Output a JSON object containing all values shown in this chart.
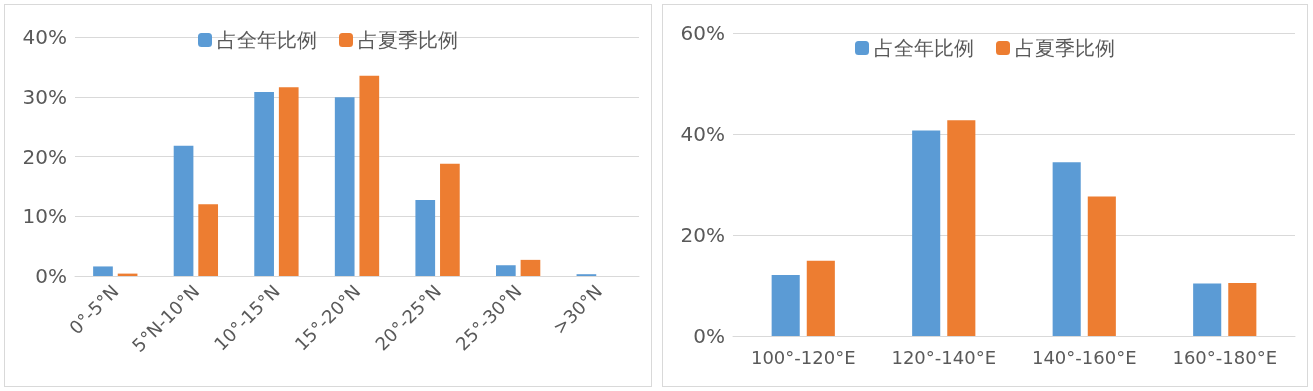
{
  "chart_data": [
    {
      "type": "bar",
      "categories": [
        "0°-5°N",
        "5°N-10°N",
        "10°-15°N",
        "15°-20°N",
        "20°-25°N",
        "25°-30°N",
        ">30°N"
      ],
      "series": [
        {
          "name": "占全年比例",
          "color": "#5b9bd5",
          "values": [
            1.6,
            21.8,
            30.8,
            29.9,
            12.7,
            1.8,
            0.3
          ]
        },
        {
          "name": "占夏季比例",
          "color": "#ed7d31",
          "values": [
            0.4,
            12.0,
            31.6,
            33.5,
            18.8,
            2.7,
            0
          ]
        }
      ],
      "ylim": [
        0,
        40
      ],
      "yticks": [
        {
          "value": 0,
          "label": "0%"
        },
        {
          "value": 10,
          "label": "10%"
        },
        {
          "value": 20,
          "label": "20%"
        },
        {
          "value": 30,
          "label": "30%"
        },
        {
          "value": 40,
          "label": "40%"
        }
      ],
      "grid": "y",
      "legend": "top"
    },
    {
      "type": "bar",
      "categories": [
        "100°-120°E",
        "120°-140°E",
        "140°-160°E",
        "160°-180°E"
      ],
      "series": [
        {
          "name": "占全年比例",
          "color": "#5b9bd5",
          "values": [
            12.1,
            40.7,
            34.4,
            10.4
          ]
        },
        {
          "name": "占夏季比例",
          "color": "#ed7d31",
          "values": [
            14.9,
            42.7,
            27.6,
            10.5
          ]
        }
      ],
      "ylim": [
        0,
        60
      ],
      "yticks": [
        {
          "value": 0,
          "label": "0%"
        },
        {
          "value": 20,
          "label": "20%"
        },
        {
          "value": 40,
          "label": "40%"
        },
        {
          "value": 60,
          "label": "60%"
        }
      ],
      "grid": "y",
      "legend": "top"
    }
  ]
}
